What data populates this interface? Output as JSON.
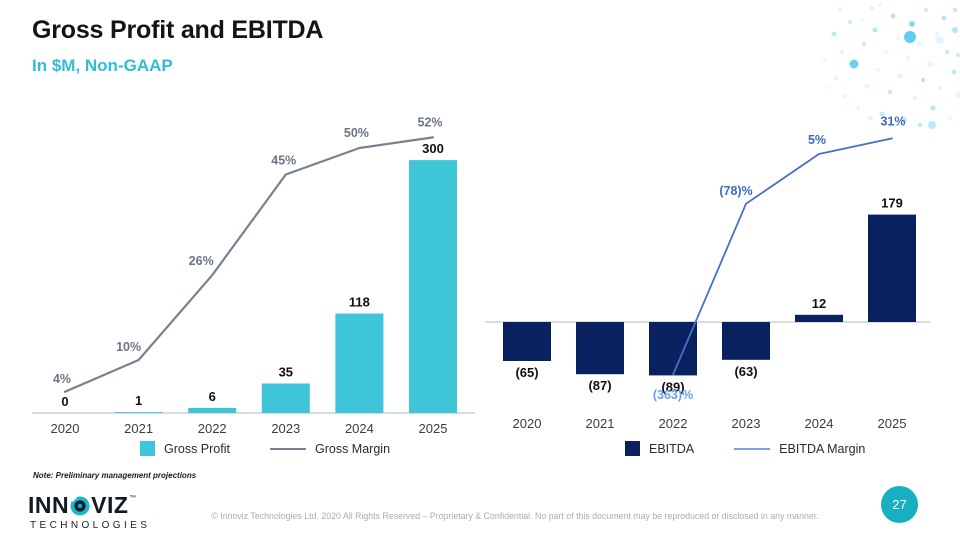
{
  "slide": {
    "title": "Gross Profit and EBITDA",
    "subtitle": "In $M, Non-GAAP",
    "note": "Note: Preliminary management projections",
    "copyright": "© Innoviz Technologies Ltd. 2020 All Rights Reserved – Proprietary & Confidential. No part of this document may be reproduced or disclosed in any manner.",
    "page_number": "27",
    "logo": {
      "text_before": "INN",
      "text_after": "VIZ",
      "trademark": "™",
      "subtext": "TECHNOLOGIES"
    }
  },
  "colors": {
    "gross_profit_bar": "#3EC5D8",
    "gross_margin_line": "#76828F",
    "ebitda_bar": "#0A2160",
    "ebitda_margin_line": "#4472C4",
    "subtitle_teal": "#31BDD6",
    "page_badge_teal": "#17B0C2",
    "axis_gray": "#CBD0D6"
  },
  "chart_data": [
    {
      "id": "gross_profit",
      "type": "bar",
      "title": "",
      "categories": [
        "2020",
        "2021",
        "2022",
        "2023",
        "2024",
        "2025"
      ],
      "series": [
        {
          "name": "Gross Profit",
          "type": "bar",
          "color": "#3EC5D8",
          "values": [
            0,
            1,
            6,
            35,
            118,
            300
          ],
          "labels": [
            "0",
            "1",
            "6",
            "35",
            "118",
            "300"
          ]
        },
        {
          "name": "Gross Margin",
          "type": "line",
          "axis": "secondary",
          "color": "#76828F",
          "values": [
            4,
            10,
            26,
            45,
            50,
            52
          ],
          "labels": [
            "4%",
            "10%",
            "26%",
            "45%",
            "50%",
            "52%"
          ]
        }
      ],
      "legend_position": "bottom",
      "value_axis_visible": false,
      "units": "$M"
    },
    {
      "id": "ebitda",
      "type": "bar",
      "title": "",
      "categories": [
        "2020",
        "2021",
        "2022",
        "2023",
        "2024",
        "2025"
      ],
      "series": [
        {
          "name": "EBITDA",
          "type": "bar",
          "color": "#0A2160",
          "values": [
            -65,
            -87,
            -89,
            -63,
            12,
            179
          ],
          "labels": [
            "(65)",
            "(87)",
            "(89)",
            "(63)",
            "12",
            "179"
          ]
        },
        {
          "name": "EBITDA Margin",
          "type": "line",
          "axis": "secondary",
          "color": "#4472C4",
          "values": [
            null,
            null,
            -363,
            -78,
            5,
            31
          ],
          "labels": [
            null,
            null,
            "(363)%",
            "(78)%",
            "5%",
            "31%"
          ]
        }
      ],
      "legend_position": "bottom",
      "value_axis_visible": false,
      "units": "$M"
    }
  ]
}
